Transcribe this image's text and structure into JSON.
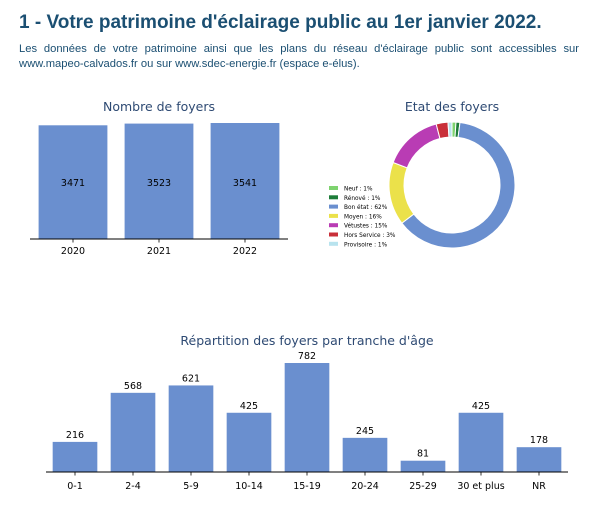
{
  "header": {
    "title": "1 - Votre patrimoine d'éclairage public au 1er janvier 2022.",
    "intro": "Les données de votre patrimoine ainsi que les plans du réseau d'éclairage public sont accessibles sur www.mapeo-calvados.fr ou sur www.sdec-energie.fr (espace e-élus)."
  },
  "colors": {
    "title": "#1b4f72",
    "bar": "#6a8fcf",
    "chart_title": "#2e4a73"
  },
  "chart_data": [
    {
      "type": "bar",
      "title": "Nombre de foyers",
      "categories": [
        "2020",
        "2021",
        "2022"
      ],
      "values": [
        3471,
        3523,
        3541
      ],
      "data_labels": [
        "3471",
        "3523",
        "3541"
      ],
      "xlabel": "",
      "ylabel": "",
      "ylim": [
        0,
        3541
      ],
      "grid": false
    },
    {
      "type": "pie",
      "title": "Etat des foyers",
      "donut": true,
      "legend_position": "left",
      "slices": [
        {
          "label": "Neuf : 1%",
          "value": 1,
          "color": "#7ed36f"
        },
        {
          "label": "Rénové : 1%",
          "value": 1,
          "color": "#1e7d3a"
        },
        {
          "label": "Bon état : 62%",
          "value": 62,
          "color": "#6a8fcf"
        },
        {
          "label": "Moyen : 16%",
          "value": 16,
          "color": "#ebe14a"
        },
        {
          "label": "Vétustes : 15%",
          "value": 15,
          "color": "#b93cb4"
        },
        {
          "label": "Hors Service : 3%",
          "value": 3,
          "color": "#c9303a"
        },
        {
          "label": "Provisoire : 1%",
          "value": 1,
          "color": "#b8e3ee"
        }
      ]
    },
    {
      "type": "bar",
      "title": "Répartition des foyers par tranche d'âge",
      "categories": [
        "0-1",
        "2-4",
        "5-9",
        "10-14",
        "15-19",
        "20-24",
        "25-29",
        "30 et plus",
        "NR"
      ],
      "values": [
        216,
        568,
        621,
        425,
        782,
        245,
        81,
        425,
        178
      ],
      "data_labels": [
        "216",
        "568",
        "621",
        "425",
        "782",
        "245",
        "81",
        "425",
        "178"
      ],
      "xlabel": "",
      "ylabel": "",
      "ylim": [
        0,
        782
      ],
      "grid": false
    }
  ]
}
